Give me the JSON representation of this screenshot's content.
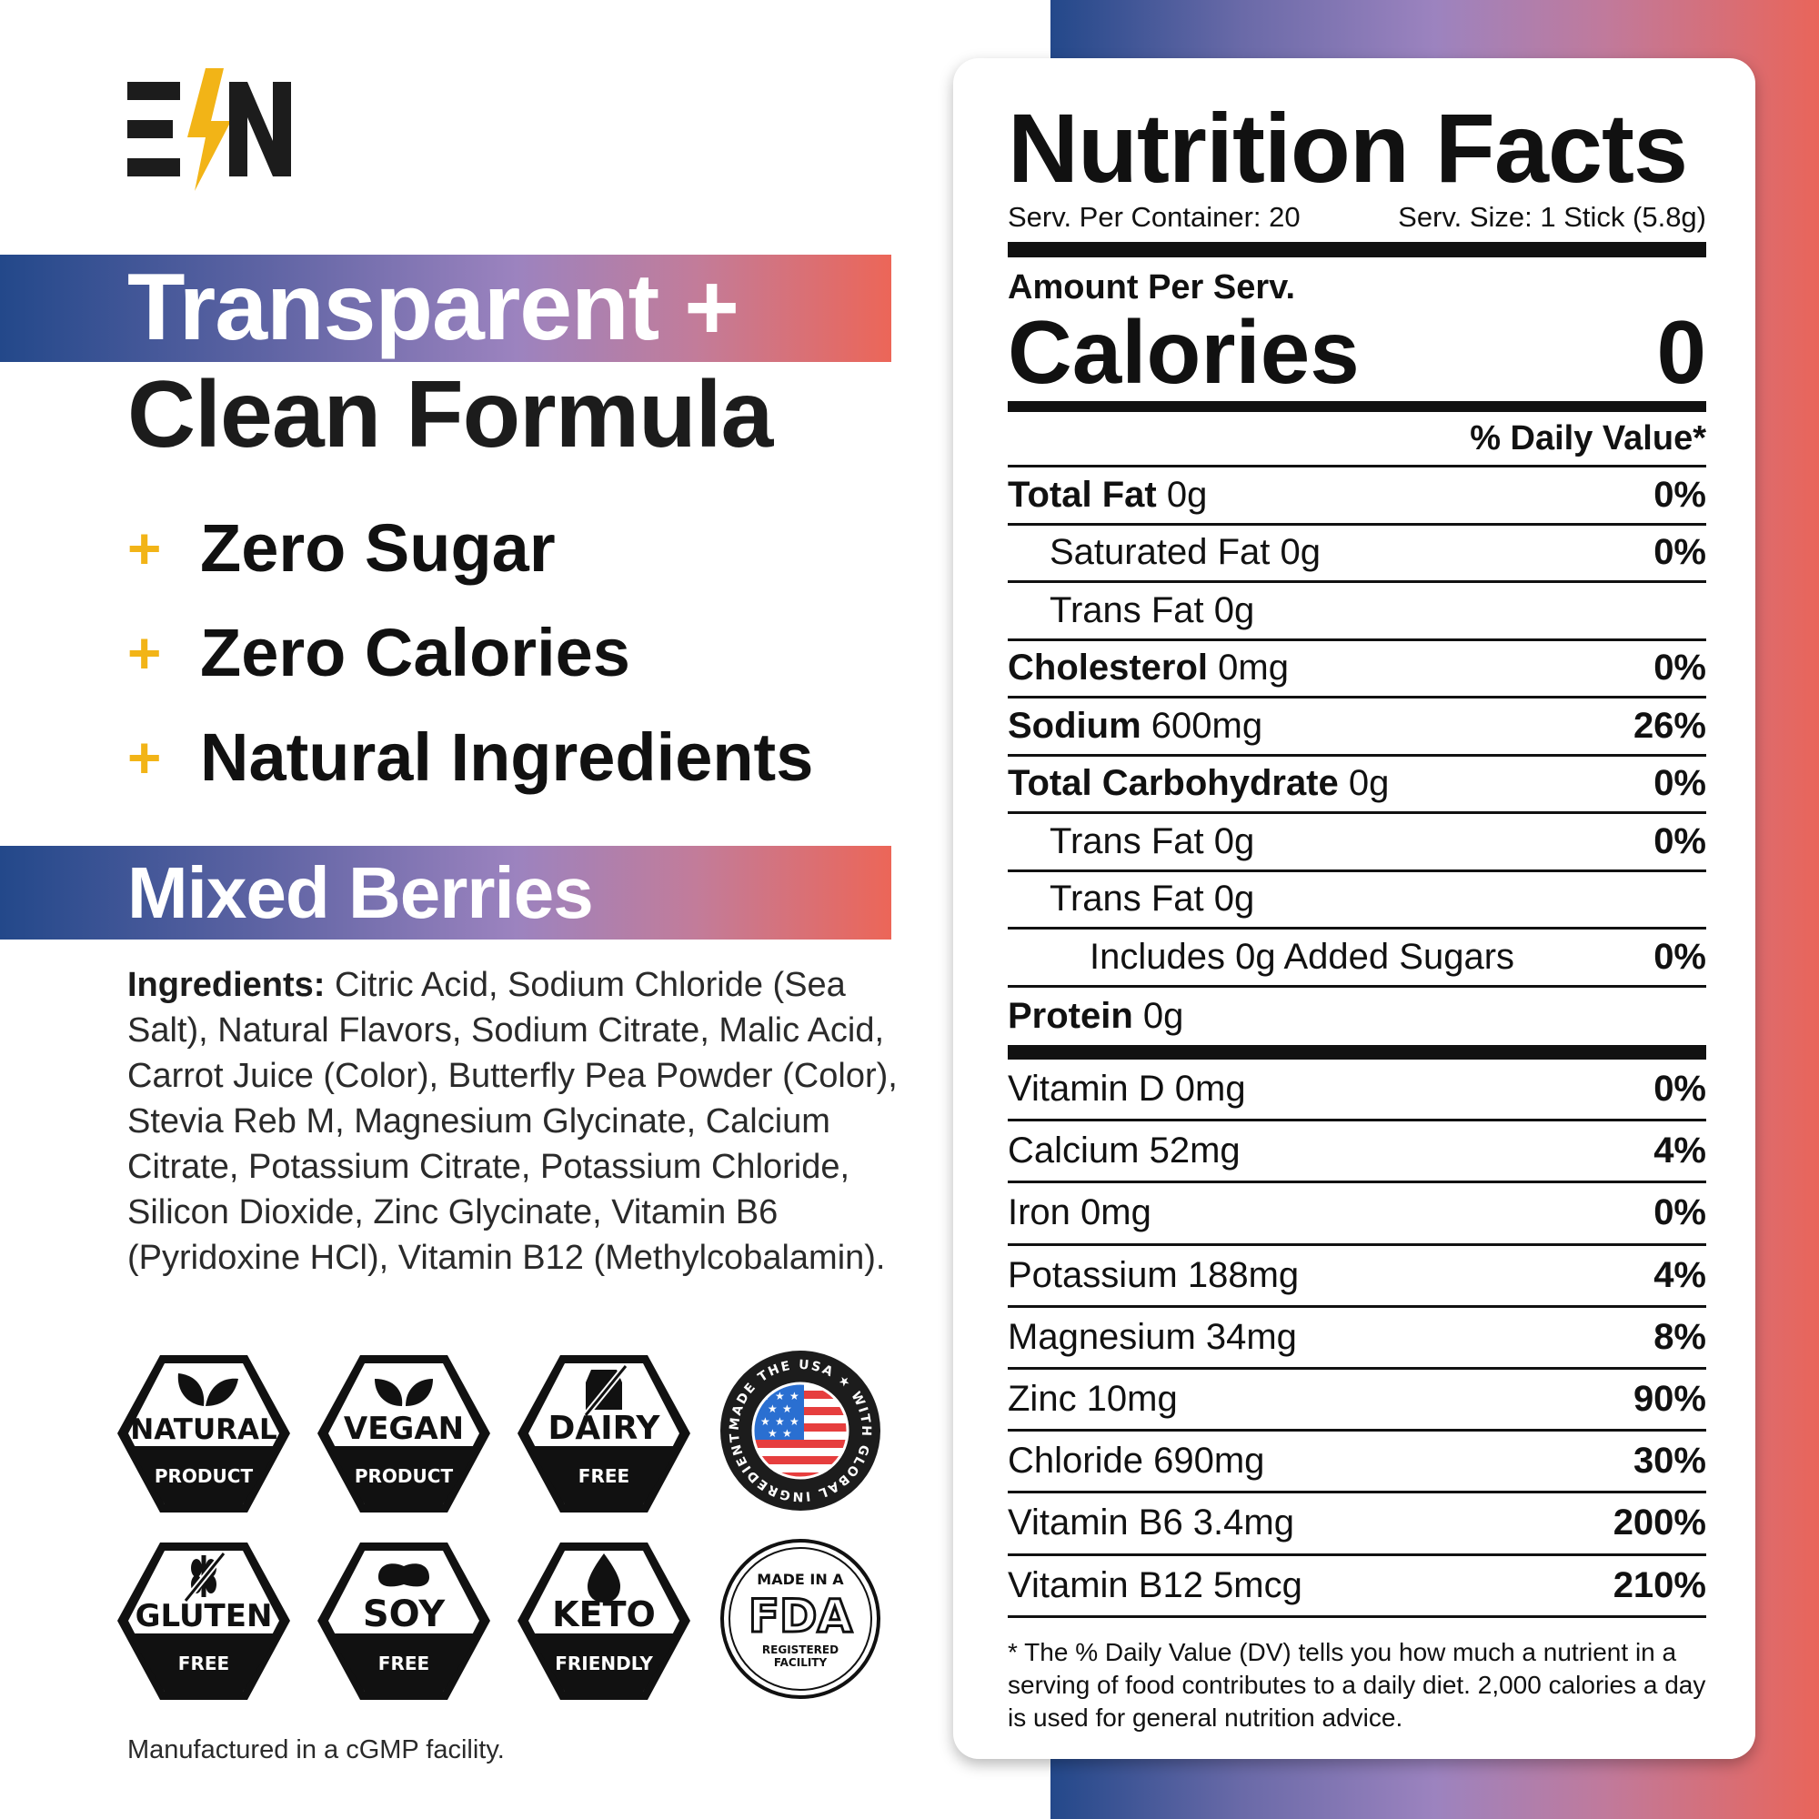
{
  "brand": {
    "logo_text": "E/N",
    "colors": {
      "gold": "#f2b417",
      "navy": "#23488a",
      "purple": "#9c83bf",
      "coral": "#e9655a",
      "black": "#1c1c1c"
    }
  },
  "headline": {
    "line1": "Transparent +",
    "line2": "Clean Formula"
  },
  "features": [
    {
      "icon": "plus-icon",
      "text": "Zero Sugar"
    },
    {
      "icon": "plus-icon",
      "text": "Zero Calories"
    },
    {
      "icon": "plus-icon",
      "text": "Natural Ingredients"
    }
  ],
  "flavor": "Mixed Berries",
  "ingredients": {
    "label": "Ingredients:",
    "text": "Citric Acid, Sodium Chloride (Sea Salt), Natural Flavors, Sodium Citrate, Malic Acid, Carrot Juice (Color), Butterfly Pea Powder (Color), Stevia Reb M, Magnesium Glycinate, Calcium Citrate, Potassium Citrate, Potassium Chloride, Silicon Dioxide, Zinc Glycinate, Vitamin B6 (Pyridoxine HCl), Vitamin B12 (Methylcobalamin)."
  },
  "badges": [
    {
      "icon": "leaf-icon",
      "top": "NATURAL",
      "bottom": "PRODUCT"
    },
    {
      "icon": "leaf-icon",
      "top": "VEGAN",
      "bottom": "PRODUCT"
    },
    {
      "icon": "milk-carton-icon",
      "top": "DAIRY",
      "bottom": "FREE"
    },
    {
      "icon": "wheat-icon",
      "top": "GLUTEN",
      "bottom": "FREE"
    },
    {
      "icon": "bean-icon",
      "top": "SOY",
      "bottom": "FREE"
    },
    {
      "icon": "drop-icon",
      "top": "KETO",
      "bottom": "FRIENDLY"
    }
  ],
  "seals": {
    "usa": {
      "ring_text": "MADE THE USA ★ WITH GLOBAL INGREDIENTS ★"
    },
    "fda": {
      "top": "MADE IN A",
      "logo": "FDA",
      "bottom1": "REGISTERED",
      "bottom2": "FACILITY"
    }
  },
  "footer_note": "Manufactured in a cGMP facility.",
  "nutrition": {
    "title": "Nutrition Facts",
    "servings_per_container": "Serv. Per Container: 20",
    "serving_size": "Serv. Size: 1 Stick (5.8g)",
    "amount_per": "Amount Per Serv.",
    "calories_label": "Calories",
    "calories_value": "0",
    "dv_header": "% Daily Value*",
    "rows": [
      {
        "bold": "Total Fat",
        "amount": " 0g",
        "pct": "0%"
      },
      {
        "bold": "",
        "amount": "Saturated Fat 0g",
        "pct": "0%"
      },
      {
        "bold": "",
        "amount": "Trans Fat 0g",
        "pct": ""
      },
      {
        "bold": "Cholesterol",
        "amount": " 0mg",
        "pct": "0%"
      },
      {
        "bold": "Sodium",
        "amount": " 600mg",
        "pct": "26%"
      },
      {
        "bold": "Total Carbohydrate",
        "amount": " 0g",
        "pct": "0%"
      },
      {
        "bold": "",
        "amount": "Trans Fat 0g",
        "pct": "0%"
      },
      {
        "bold": "",
        "amount": "Trans Fat 0g",
        "pct": ""
      },
      {
        "bold": "",
        "amount": "Includes 0g Added Sugars",
        "pct": "0%"
      },
      {
        "bold": "Protein",
        "amount": " 0g",
        "pct": ""
      }
    ],
    "vitamins": [
      {
        "label": "Vitamin D 0mg",
        "pct": "0%"
      },
      {
        "label": "Calcium 52mg",
        "pct": "4%"
      },
      {
        "label": "Iron 0mg",
        "pct": "0%"
      },
      {
        "label": "Potassium 188mg",
        "pct": "4%"
      },
      {
        "label": "Magnesium 34mg",
        "pct": "8%"
      },
      {
        "label": "Zinc 10mg",
        "pct": "90%"
      },
      {
        "label": "Chloride 690mg",
        "pct": "30%"
      },
      {
        "label": "Vitamin B6 3.4mg",
        "pct": "200%"
      },
      {
        "label": "Vitamin B12 5mcg",
        "pct": "210%"
      }
    ],
    "footnote": "* The % Daily Value (DV) tells you how much a nutrient in a serving of food contributes to a daily diet. 2,000 calories a day is used for general nutrition advice."
  }
}
